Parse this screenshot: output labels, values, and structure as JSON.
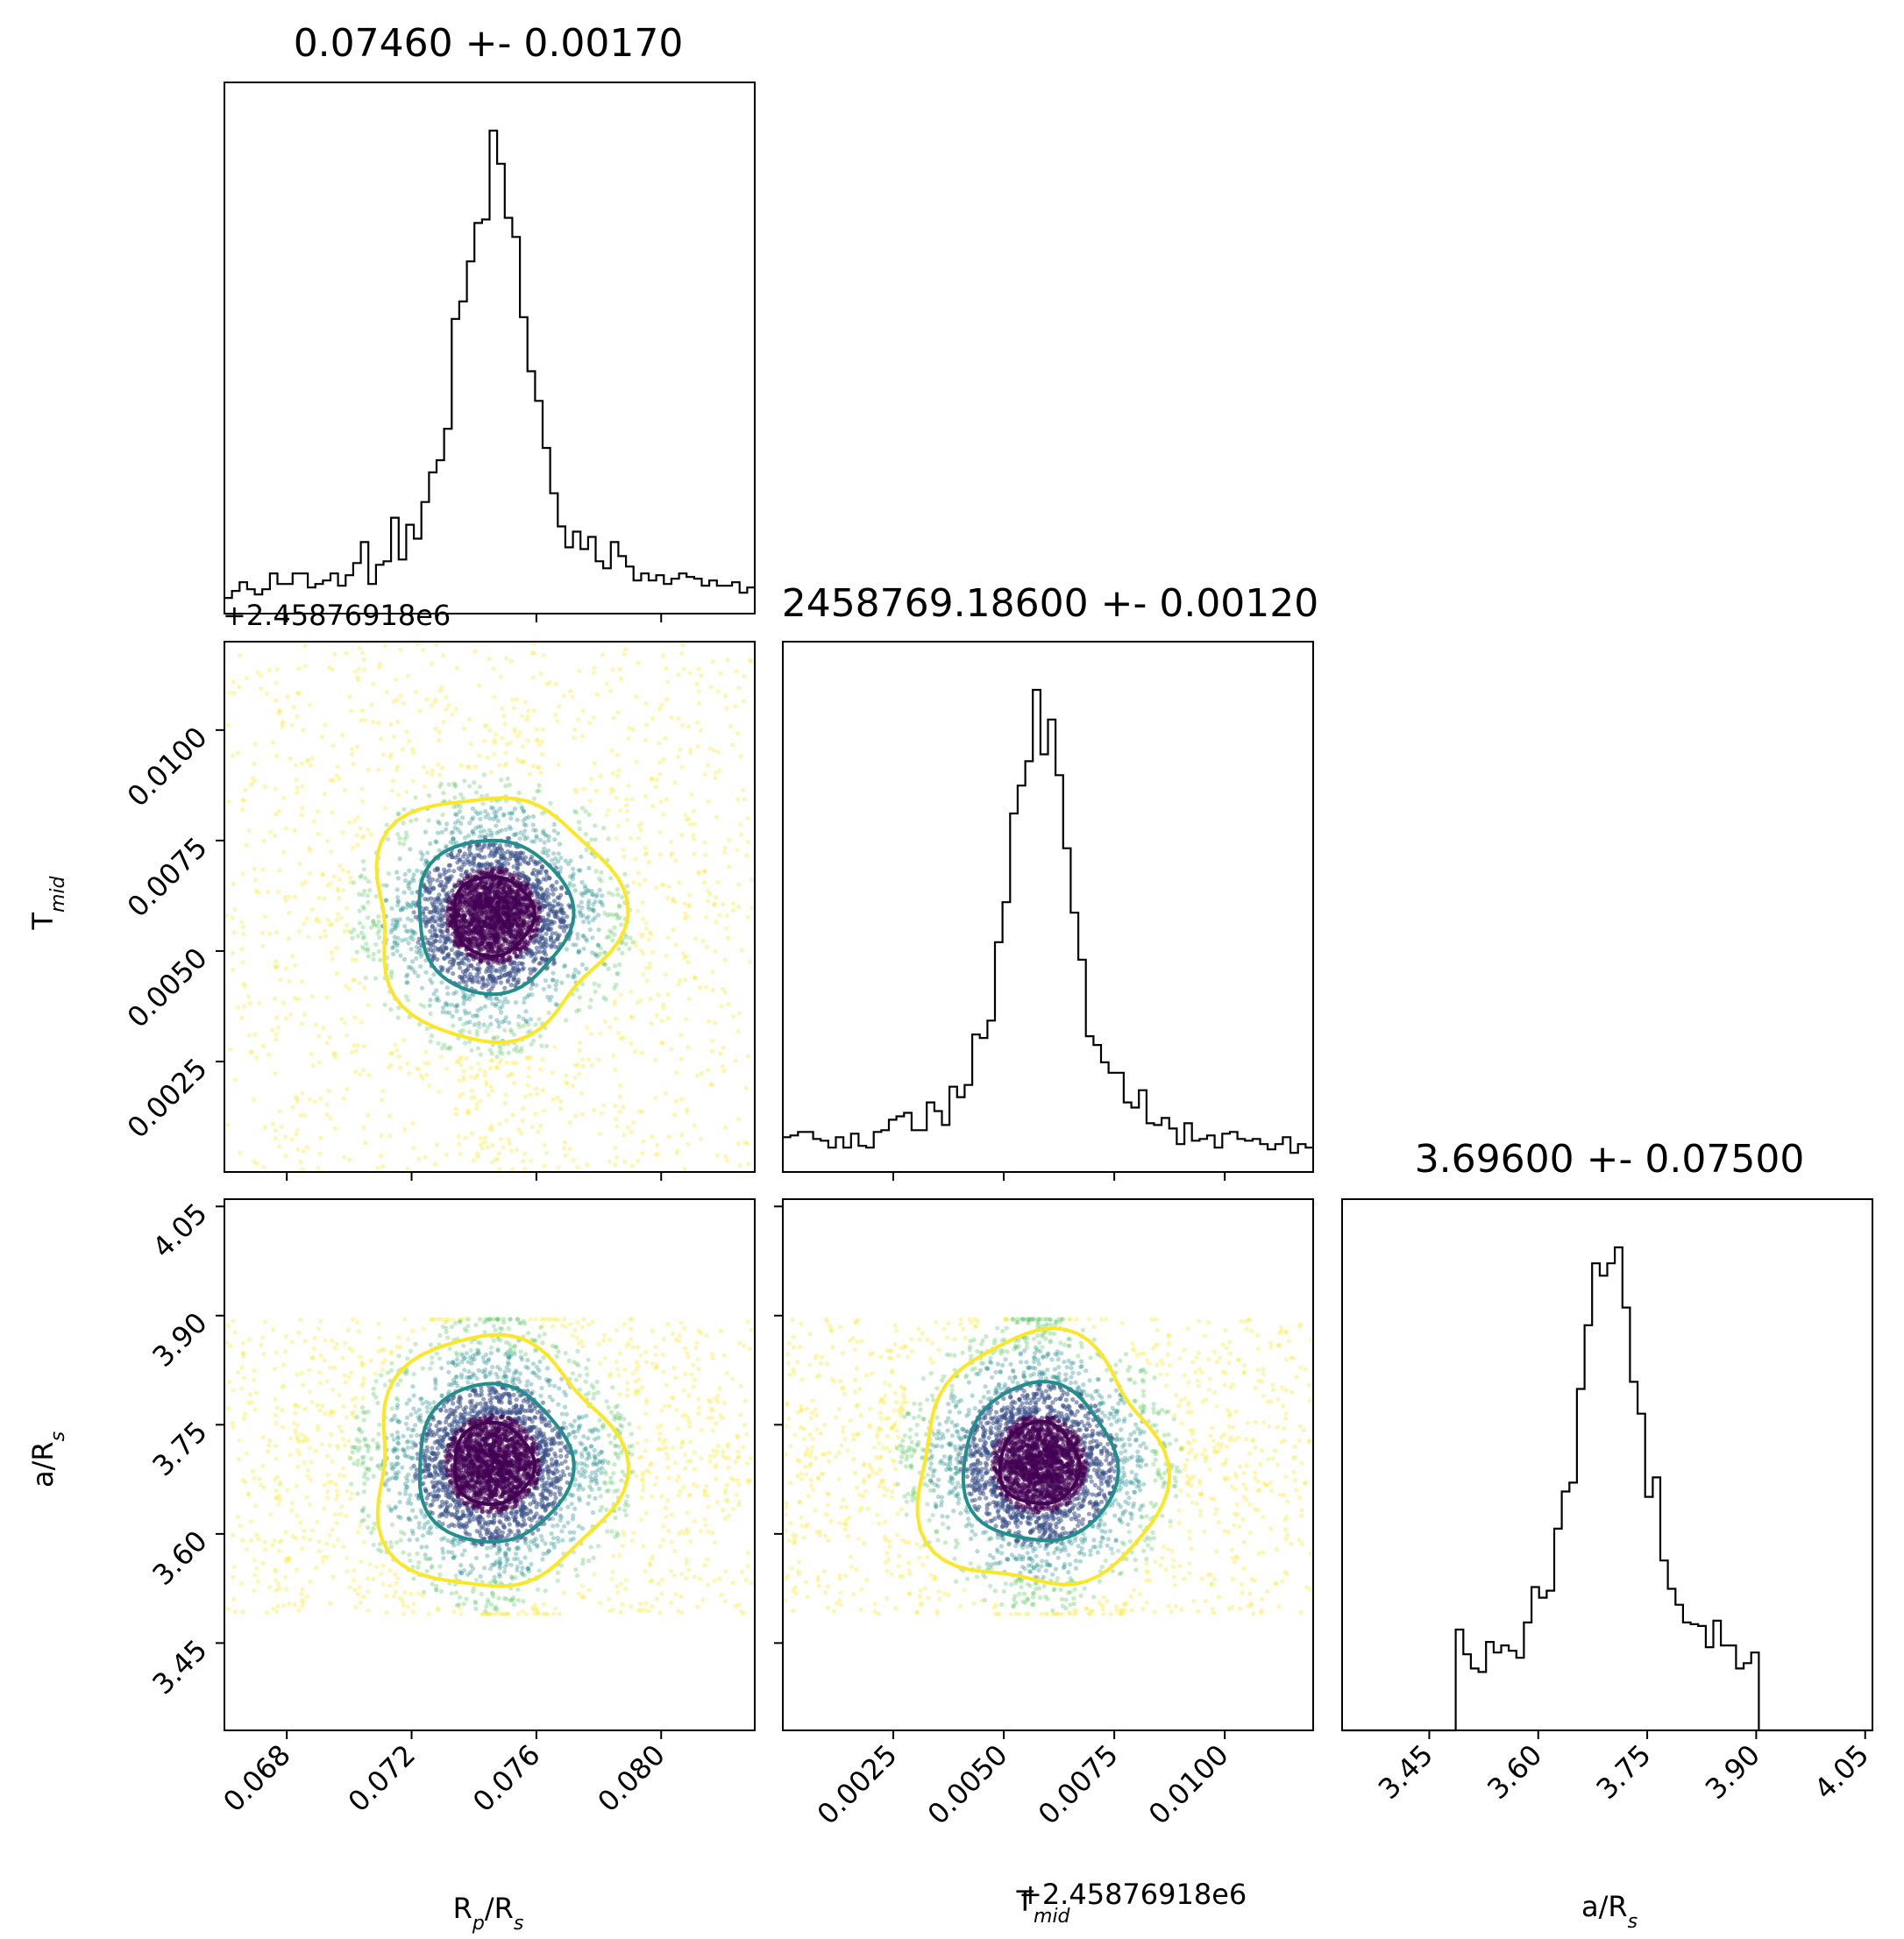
{
  "chart_data": {
    "type": "scatter",
    "subtype": "corner-plot",
    "parameters": [
      {
        "name": "R_p/R_s",
        "label_base": "R",
        "label_sub": "p",
        "label_rest": "/R",
        "label_sub2": "s",
        "title": "0.07460 +- 0.00170",
        "mean": 0.0746,
        "std": 0.0017,
        "range": [
          0.066,
          0.083
        ],
        "ticks": [
          "0.068",
          "0.072",
          "0.076",
          "0.080"
        ],
        "tick_values": [
          0.068,
          0.072,
          0.076,
          0.08
        ]
      },
      {
        "name": "T_mid",
        "label_base": "T",
        "label_sub": "mid",
        "title": "2458769.18600 +- 0.00120",
        "offset_label": "+2.45876918e6",
        "mean": 0.0058,
        "std": 0.0012,
        "range": [
          0.0,
          0.012
        ],
        "ticks": [
          "0.0025",
          "0.0050",
          "0.0075",
          "0.0100"
        ],
        "tick_values": [
          0.0025,
          0.005,
          0.0075,
          0.01
        ]
      },
      {
        "name": "a/R_s",
        "label_base": "a/R",
        "label_sub": "s",
        "title": "3.69600 +- 0.07500",
        "mean": 3.696,
        "std": 0.075,
        "range": [
          3.33,
          4.06
        ],
        "ticks": [
          "3.45",
          "3.60",
          "3.75",
          "3.90",
          "4.05"
        ],
        "tick_values": [
          3.45,
          3.6,
          3.75,
          3.9,
          4.05
        ]
      }
    ],
    "contour_colors": [
      "#fde725",
      "#21908d",
      "#440154"
    ],
    "point_colors": [
      "#440154",
      "#3b528b",
      "#21908d",
      "#5ec962",
      "#fde725"
    ]
  }
}
